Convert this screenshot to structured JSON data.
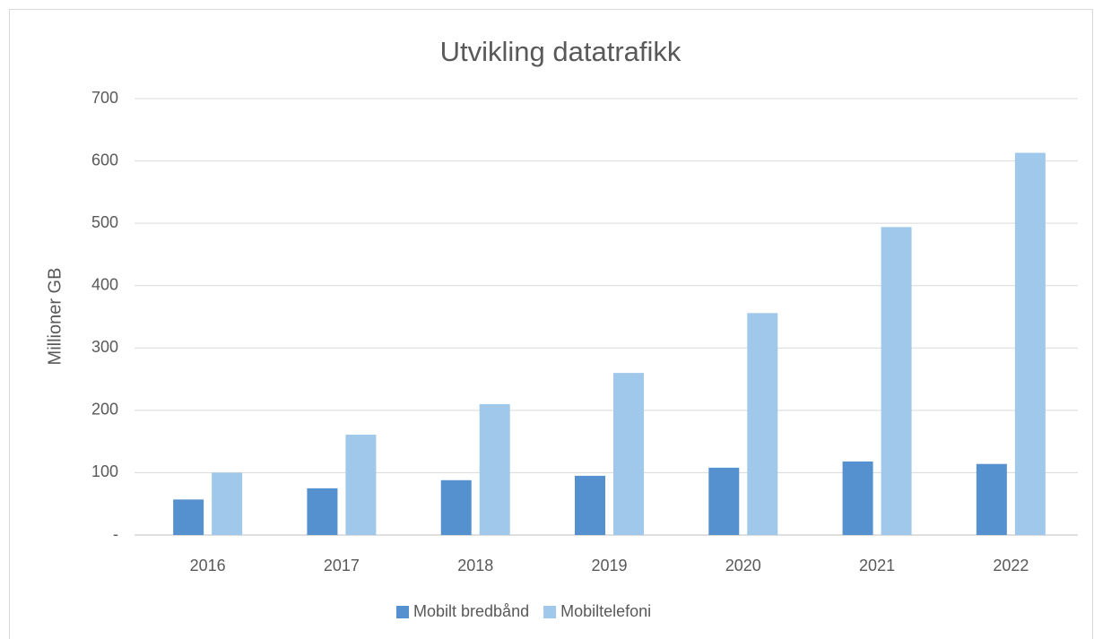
{
  "chart_data": {
    "type": "bar",
    "title": "Utvikling datatrafikk",
    "ylabel": "Millioner GB",
    "categories": [
      "2016",
      "2017",
      "2018",
      "2019",
      "2020",
      "2021",
      "2022"
    ],
    "series": [
      {
        "name": "Mobilt bredbånd",
        "color": "#5591cf",
        "values": [
          57,
          75,
          88,
          95,
          108,
          118,
          114
        ]
      },
      {
        "name": "Mobiltelefoni",
        "color": "#9fc8ea",
        "values": [
          100,
          161,
          210,
          260,
          356,
          494,
          613
        ]
      }
    ],
    "ylim": [
      0,
      700
    ],
    "yticks": [
      {
        "value": 0,
        "label": "-"
      },
      100,
      200,
      300,
      400,
      500,
      600,
      700
    ],
    "grid": true,
    "legend": "bottom"
  }
}
